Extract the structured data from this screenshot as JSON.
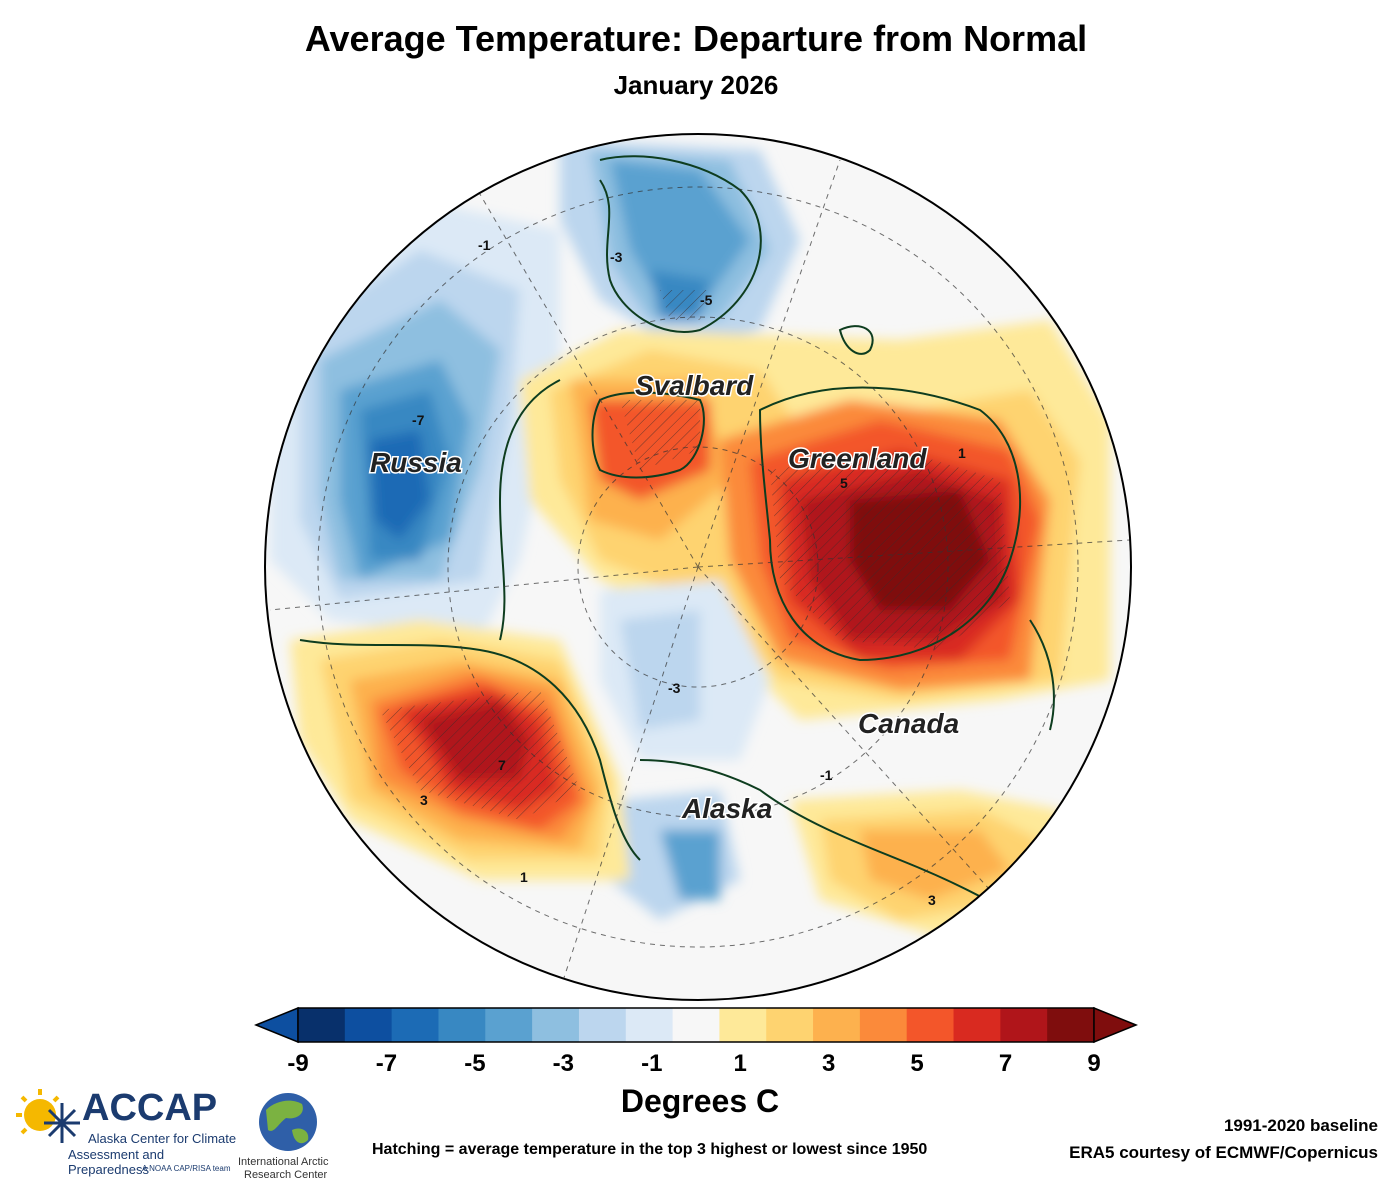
{
  "title": "Average Temperature: Departure from Normal",
  "subtitle": "January 2026",
  "map": {
    "regions": [
      "Svalbard",
      "Russia",
      "Greenland",
      "Canada",
      "Alaska"
    ],
    "contour_labels": [
      "-1",
      "-3",
      "-5",
      "-7",
      "1",
      "3",
      "5",
      "7"
    ]
  },
  "colorbar": {
    "ticks": [
      "-9",
      "-7",
      "-5",
      "-3",
      "-1",
      "1",
      "3",
      "5",
      "7",
      "9"
    ],
    "colors": [
      "#08306b",
      "#0d4fa0",
      "#1c6bb5",
      "#3888c2",
      "#5aa1d0",
      "#8ebfe0",
      "#bcd6ee",
      "#dce9f6",
      "#f7f7f7",
      "#fee999",
      "#fed370",
      "#fdb14e",
      "#fb8a3a",
      "#f3562a",
      "#d92a20",
      "#b0151a",
      "#7f0d0d"
    ],
    "title": "Degrees C"
  },
  "logos": {
    "accap_name": "ACCAP",
    "accap_line1": "Alaska Center for Climate",
    "accap_line2": "Assessment and Preparedness",
    "accap_line3": "A NOAA CAP/RISA team",
    "iarc_line1": "International Arctic",
    "iarc_line2": "Research Center"
  },
  "notes": {
    "hatching": "Hatching = average temperature in the top 3 highest or lowest since 1950",
    "baseline": "1991-2020 baseline",
    "source": "ERA5 courtesy of ECMWF/Copernicus"
  }
}
